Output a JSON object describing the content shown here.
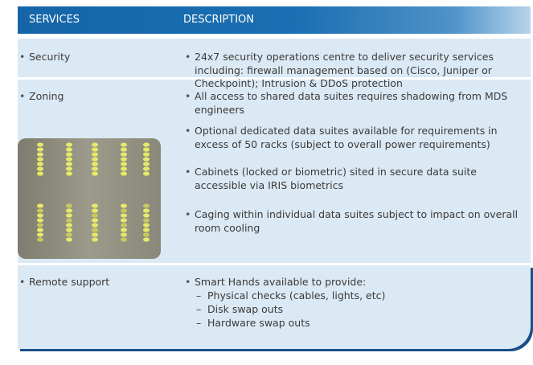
{
  "header": {
    "columns": [
      "SERVICES",
      "DESCRIPTION"
    ]
  },
  "table": {
    "rows": [
      {
        "service": "Security",
        "description": [
          "24x7 security operations centre to deliver security services including: firewall management based on (Cisco, Juniper or Checkpoint); Intrusion & DDoS protection"
        ]
      },
      {
        "service": "Zoning",
        "description": [
          "All access to shared data suites requires shadowing from MDS engineers",
          "Optional dedicated data suites available for requirements in excess of 50 racks (subject to overall power requirements)",
          "Cabinets (locked or biometric) sited in secure data suite accessible via IRIS biometrics",
          "Caging within individual data suites subject to impact on overall room cooling"
        ]
      },
      {
        "service": "Remote support",
        "description": [
          "Smart Hands available to provide:"
        ],
        "subitems": [
          "Physical checks (cables, lights, etc)",
          "Disk swap outs",
          "Hardware swap outs"
        ]
      }
    ]
  }
}
